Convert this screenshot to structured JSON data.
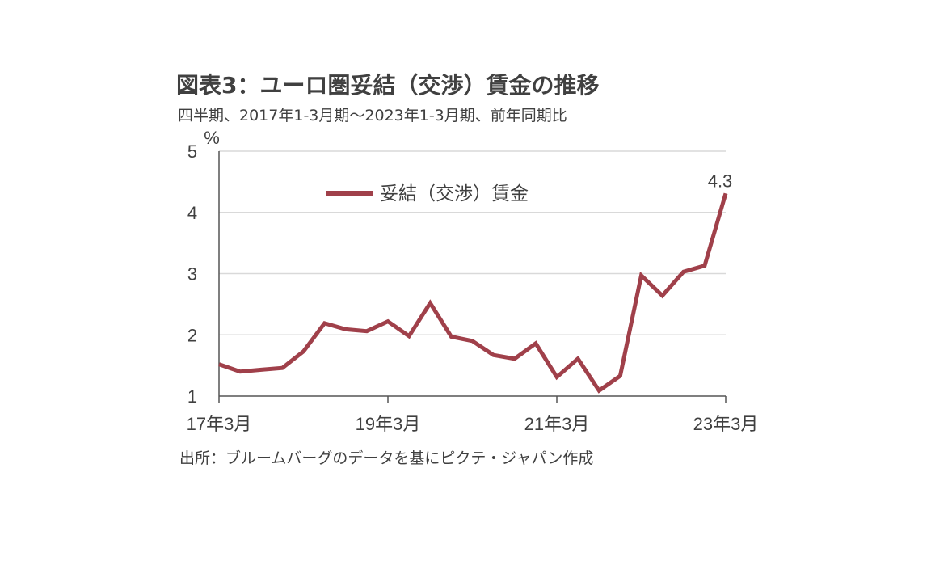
{
  "chart_data": {
    "type": "line",
    "title": "図表3：ユーロ圏妥結（交渉）賃金の推移",
    "subtitle": "四半期、2017年1-3月期～2023年1-3月期、前年同期比",
    "source": "出所：ブルームバーグのデータを基にピクテ・ジャパン作成",
    "ylabel": "%",
    "ylim": [
      1,
      5
    ],
    "yticks": [
      1,
      2,
      3,
      4,
      5
    ],
    "x_tick_labels": [
      "17年3月",
      "19年3月",
      "21年3月",
      "23年3月"
    ],
    "x_tick_index": [
      0,
      8,
      16,
      24
    ],
    "grid": true,
    "legend_position": "top-center",
    "series": [
      {
        "name": "妥結（交渉）賃金",
        "color": "#A0404A",
        "values": [
          1.52,
          1.4,
          1.43,
          1.46,
          1.73,
          2.19,
          2.09,
          2.06,
          2.22,
          1.98,
          2.52,
          1.97,
          1.9,
          1.67,
          1.61,
          1.86,
          1.31,
          1.61,
          1.09,
          1.33,
          2.97,
          2.64,
          3.03,
          3.13,
          4.31
        ]
      }
    ],
    "annotations": [
      {
        "index": 24,
        "text": "4.3"
      }
    ]
  }
}
